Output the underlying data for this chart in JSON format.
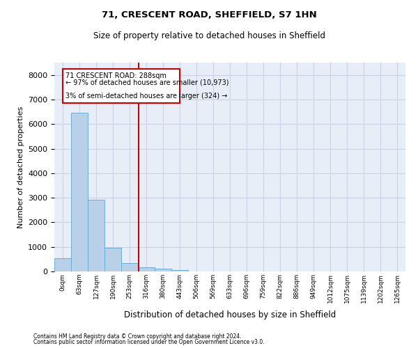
{
  "title1": "71, CRESCENT ROAD, SHEFFIELD, S7 1HN",
  "title2": "Size of property relative to detached houses in Sheffield",
  "xlabel": "Distribution of detached houses by size in Sheffield",
  "ylabel": "Number of detached properties",
  "footer1": "Contains HM Land Registry data © Crown copyright and database right 2024.",
  "footer2": "Contains public sector information licensed under the Open Government Licence v3.0.",
  "bar_color": "#b8d0e8",
  "bar_edge_color": "#6baed6",
  "grid_color": "#c8d4e4",
  "background_color": "#e8eef8",
  "annotation_box_color": "#cc0000",
  "vline_color": "#cc0000",
  "categories": [
    "0sqm",
    "63sqm",
    "127sqm",
    "190sqm",
    "253sqm",
    "316sqm",
    "380sqm",
    "443sqm",
    "506sqm",
    "569sqm",
    "633sqm",
    "696sqm",
    "759sqm",
    "822sqm",
    "886sqm",
    "949sqm",
    "1012sqm",
    "1075sqm",
    "1139sqm",
    "1202sqm",
    "1265sqm"
  ],
  "values": [
    550,
    6450,
    2930,
    975,
    340,
    160,
    100,
    65,
    0,
    0,
    0,
    0,
    0,
    0,
    0,
    0,
    0,
    0,
    0,
    0,
    0
  ],
  "ylim": [
    0,
    8500
  ],
  "yticks": [
    0,
    1000,
    2000,
    3000,
    4000,
    5000,
    6000,
    7000,
    8000
  ],
  "property_label": "71 CRESCENT ROAD: 288sqm",
  "pct_smaller": "97% of detached houses are smaller (10,973)",
  "pct_larger": "3% of semi-detached houses are larger (324)",
  "vline_x": 4.55
}
